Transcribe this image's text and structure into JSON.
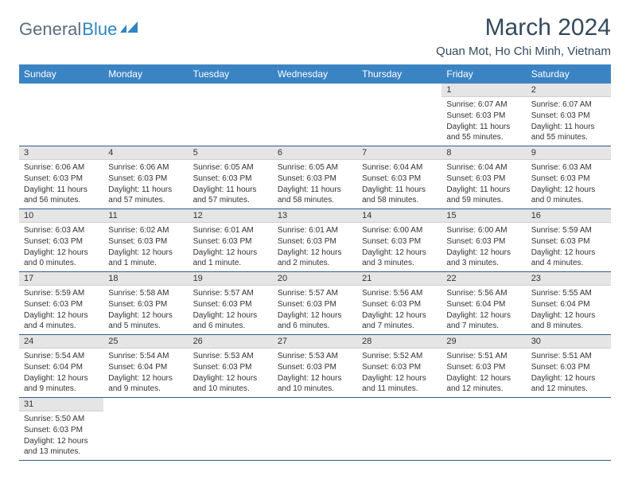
{
  "brand": {
    "general": "General",
    "blue": "Blue"
  },
  "title": "March 2024",
  "location": "Quan Mot, Ho Chi Minh, Vietnam",
  "colors": {
    "header_bg": "#3b84c4",
    "header_fg": "#ffffff",
    "daynum_bg": "#e5e5e5",
    "row_border": "#2e5e8a",
    "text": "#333333",
    "title_text": "#34495e",
    "logo_gray": "#5d6d7e",
    "logo_blue": "#2e86c1"
  },
  "calendar": {
    "type": "table",
    "columns": [
      "Sunday",
      "Monday",
      "Tuesday",
      "Wednesday",
      "Thursday",
      "Friday",
      "Saturday"
    ],
    "weeks": [
      [
        null,
        null,
        null,
        null,
        null,
        {
          "n": "1",
          "sr": "Sunrise: 6:07 AM",
          "ss": "Sunset: 6:03 PM",
          "dl": "Daylight: 11 hours and 55 minutes."
        },
        {
          "n": "2",
          "sr": "Sunrise: 6:07 AM",
          "ss": "Sunset: 6:03 PM",
          "dl": "Daylight: 11 hours and 55 minutes."
        }
      ],
      [
        {
          "n": "3",
          "sr": "Sunrise: 6:06 AM",
          "ss": "Sunset: 6:03 PM",
          "dl": "Daylight: 11 hours and 56 minutes."
        },
        {
          "n": "4",
          "sr": "Sunrise: 6:06 AM",
          "ss": "Sunset: 6:03 PM",
          "dl": "Daylight: 11 hours and 57 minutes."
        },
        {
          "n": "5",
          "sr": "Sunrise: 6:05 AM",
          "ss": "Sunset: 6:03 PM",
          "dl": "Daylight: 11 hours and 57 minutes."
        },
        {
          "n": "6",
          "sr": "Sunrise: 6:05 AM",
          "ss": "Sunset: 6:03 PM",
          "dl": "Daylight: 11 hours and 58 minutes."
        },
        {
          "n": "7",
          "sr": "Sunrise: 6:04 AM",
          "ss": "Sunset: 6:03 PM",
          "dl": "Daylight: 11 hours and 58 minutes."
        },
        {
          "n": "8",
          "sr": "Sunrise: 6:04 AM",
          "ss": "Sunset: 6:03 PM",
          "dl": "Daylight: 11 hours and 59 minutes."
        },
        {
          "n": "9",
          "sr": "Sunrise: 6:03 AM",
          "ss": "Sunset: 6:03 PM",
          "dl": "Daylight: 12 hours and 0 minutes."
        }
      ],
      [
        {
          "n": "10",
          "sr": "Sunrise: 6:03 AM",
          "ss": "Sunset: 6:03 PM",
          "dl": "Daylight: 12 hours and 0 minutes."
        },
        {
          "n": "11",
          "sr": "Sunrise: 6:02 AM",
          "ss": "Sunset: 6:03 PM",
          "dl": "Daylight: 12 hours and 1 minute."
        },
        {
          "n": "12",
          "sr": "Sunrise: 6:01 AM",
          "ss": "Sunset: 6:03 PM",
          "dl": "Daylight: 12 hours and 1 minute."
        },
        {
          "n": "13",
          "sr": "Sunrise: 6:01 AM",
          "ss": "Sunset: 6:03 PM",
          "dl": "Daylight: 12 hours and 2 minutes."
        },
        {
          "n": "14",
          "sr": "Sunrise: 6:00 AM",
          "ss": "Sunset: 6:03 PM",
          "dl": "Daylight: 12 hours and 3 minutes."
        },
        {
          "n": "15",
          "sr": "Sunrise: 6:00 AM",
          "ss": "Sunset: 6:03 PM",
          "dl": "Daylight: 12 hours and 3 minutes."
        },
        {
          "n": "16",
          "sr": "Sunrise: 5:59 AM",
          "ss": "Sunset: 6:03 PM",
          "dl": "Daylight: 12 hours and 4 minutes."
        }
      ],
      [
        {
          "n": "17",
          "sr": "Sunrise: 5:59 AM",
          "ss": "Sunset: 6:03 PM",
          "dl": "Daylight: 12 hours and 4 minutes."
        },
        {
          "n": "18",
          "sr": "Sunrise: 5:58 AM",
          "ss": "Sunset: 6:03 PM",
          "dl": "Daylight: 12 hours and 5 minutes."
        },
        {
          "n": "19",
          "sr": "Sunrise: 5:57 AM",
          "ss": "Sunset: 6:03 PM",
          "dl": "Daylight: 12 hours and 6 minutes."
        },
        {
          "n": "20",
          "sr": "Sunrise: 5:57 AM",
          "ss": "Sunset: 6:03 PM",
          "dl": "Daylight: 12 hours and 6 minutes."
        },
        {
          "n": "21",
          "sr": "Sunrise: 5:56 AM",
          "ss": "Sunset: 6:03 PM",
          "dl": "Daylight: 12 hours and 7 minutes."
        },
        {
          "n": "22",
          "sr": "Sunrise: 5:56 AM",
          "ss": "Sunset: 6:04 PM",
          "dl": "Daylight: 12 hours and 7 minutes."
        },
        {
          "n": "23",
          "sr": "Sunrise: 5:55 AM",
          "ss": "Sunset: 6:04 PM",
          "dl": "Daylight: 12 hours and 8 minutes."
        }
      ],
      [
        {
          "n": "24",
          "sr": "Sunrise: 5:54 AM",
          "ss": "Sunset: 6:04 PM",
          "dl": "Daylight: 12 hours and 9 minutes."
        },
        {
          "n": "25",
          "sr": "Sunrise: 5:54 AM",
          "ss": "Sunset: 6:04 PM",
          "dl": "Daylight: 12 hours and 9 minutes."
        },
        {
          "n": "26",
          "sr": "Sunrise: 5:53 AM",
          "ss": "Sunset: 6:03 PM",
          "dl": "Daylight: 12 hours and 10 minutes."
        },
        {
          "n": "27",
          "sr": "Sunrise: 5:53 AM",
          "ss": "Sunset: 6:03 PM",
          "dl": "Daylight: 12 hours and 10 minutes."
        },
        {
          "n": "28",
          "sr": "Sunrise: 5:52 AM",
          "ss": "Sunset: 6:03 PM",
          "dl": "Daylight: 12 hours and 11 minutes."
        },
        {
          "n": "29",
          "sr": "Sunrise: 5:51 AM",
          "ss": "Sunset: 6:03 PM",
          "dl": "Daylight: 12 hours and 12 minutes."
        },
        {
          "n": "30",
          "sr": "Sunrise: 5:51 AM",
          "ss": "Sunset: 6:03 PM",
          "dl": "Daylight: 12 hours and 12 minutes."
        }
      ],
      [
        {
          "n": "31",
          "sr": "Sunrise: 5:50 AM",
          "ss": "Sunset: 6:03 PM",
          "dl": "Daylight: 12 hours and 13 minutes."
        },
        null,
        null,
        null,
        null,
        null,
        null
      ]
    ]
  }
}
